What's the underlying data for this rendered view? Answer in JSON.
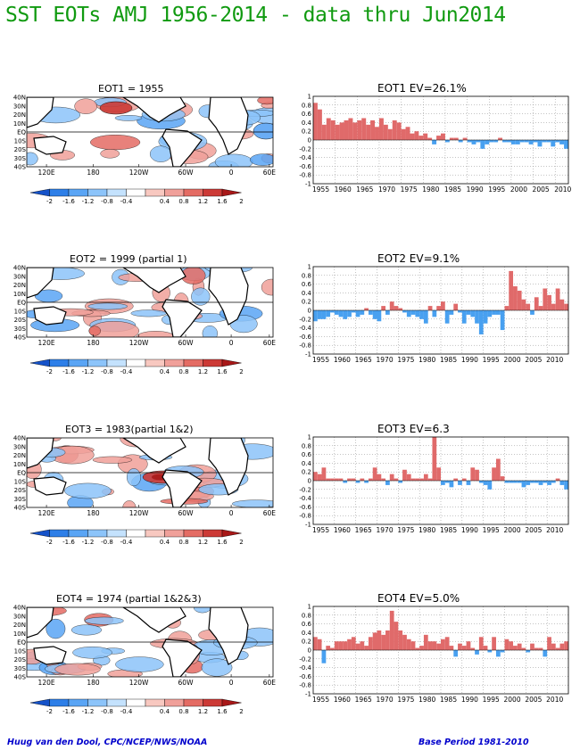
{
  "title": "SST EOTs AMJ 1956-2014 - data thru Jun2014",
  "credit_left": "Huug van den Dool, CPC/NCEP/NWS/NOAA",
  "credit_right": "Base Period 1981-2010",
  "map_lat_labels": [
    "40N",
    "30N",
    "20N",
    "10N",
    "EQ",
    "10S",
    "20S",
    "30S",
    "40S"
  ],
  "map_lon_labels": [
    "120E",
    "180",
    "120W",
    "60W",
    "0",
    "60E"
  ],
  "colorbar_labels": [
    "-2",
    "-1.6",
    "-1.2",
    "-0.8",
    "-0.4",
    "0.4",
    "0.8",
    "1.2",
    "1.6",
    "2"
  ],
  "colors": {
    "title": "#109a10",
    "positive_bar": "#e06a6a",
    "negative_bar": "#48a0f0",
    "credit": "#0000cc",
    "colorbar": [
      "#1552c9",
      "#2e7fe8",
      "#5aa5f5",
      "#8cc4fa",
      "#c4e2fd",
      "#ffffff",
      "#f8c8c0",
      "#f0a09a",
      "#e46c64",
      "#cc3a36",
      "#a81818"
    ]
  },
  "panels": [
    {
      "map_title": "EOT1    = 1955",
      "bar_title": "EOT1  EV=26.1%"
    },
    {
      "map_title": "EOT2    = 1999 (partial 1)",
      "bar_title": "EOT2  EV=9.1%"
    },
    {
      "map_title": "EOT3    = 1983(partial 1&2)",
      "bar_title": "EOT3  EV=6.3"
    },
    {
      "map_title": "EOT4    = 1974 (partial 1&2&3)",
      "bar_title": "EOT4  EV=5.0%"
    }
  ],
  "chart_data": [
    {
      "type": "bar",
      "title": "EOT1  EV=26.1%",
      "x_start": 1955,
      "ylim": [
        -1,
        1
      ],
      "yticks": [
        "1",
        "0.8",
        "0.6",
        "0.4",
        "0.2",
        "0",
        "-0.2",
        "-0.4",
        "-0.6",
        "-0.8",
        "-1"
      ],
      "xticks": [
        "1955",
        "1960",
        "1965",
        "1970",
        "1975",
        "1980",
        "1985",
        "1990",
        "1995",
        "2000",
        "2005",
        "2010"
      ],
      "values": [
        0.85,
        0.7,
        0.35,
        0.5,
        0.45,
        0.35,
        0.4,
        0.45,
        0.5,
        0.4,
        0.45,
        0.5,
        0.35,
        0.45,
        0.3,
        0.5,
        0.35,
        0.25,
        0.45,
        0.4,
        0.25,
        0.3,
        0.15,
        0.2,
        0.1,
        0.15,
        0.05,
        -0.1,
        0.1,
        0.15,
        -0.05,
        0.05,
        0.05,
        -0.05,
        0.05,
        -0.05,
        -0.1,
        -0.05,
        -0.2,
        -0.1,
        -0.05,
        -0.05,
        0.05,
        -0.05,
        -0.05,
        -0.1,
        -0.1,
        -0.05,
        -0.05,
        -0.1,
        -0.05,
        -0.15,
        -0.05,
        -0.05,
        -0.15,
        -0.05,
        -0.1,
        -0.2
      ]
    },
    {
      "type": "bar",
      "title": "EOT2  EV=9.1%",
      "x_start": 1955,
      "ylim": [
        -1,
        1
      ],
      "yticks": [
        "1",
        "0.8",
        "0.6",
        "0.4",
        "0.2",
        "0",
        "-0.2",
        "-0.4",
        "-0.6",
        "-0.8",
        "-1"
      ],
      "xticks": [
        "1955",
        "1960",
        "1965",
        "1970",
        "1975",
        "1980",
        "1985",
        "1990",
        "1995",
        "2000",
        "2005",
        "2010"
      ],
      "values": [
        -0.25,
        -0.2,
        -0.2,
        -0.15,
        -0.05,
        -0.1,
        -0.15,
        -0.2,
        -0.15,
        -0.05,
        -0.15,
        -0.1,
        0.05,
        -0.1,
        -0.2,
        -0.25,
        0.1,
        -0.1,
        0.2,
        0.1,
        0.05,
        -0.05,
        -0.15,
        -0.1,
        -0.15,
        -0.2,
        -0.3,
        0.1,
        -0.15,
        0.1,
        0.2,
        -0.3,
        -0.1,
        0.15,
        -0.05,
        -0.3,
        -0.1,
        -0.15,
        -0.3,
        -0.55,
        -0.3,
        -0.15,
        -0.1,
        -0.1,
        -0.45,
        0.1,
        0.9,
        0.55,
        0.45,
        0.25,
        0.15,
        -0.1,
        0.3,
        0.1,
        0.5,
        0.35,
        0.15,
        0.5,
        0.25,
        0.15
      ]
    },
    {
      "type": "bar",
      "title": "EOT3  EV=6.3",
      "x_start": 1955,
      "ylim": [
        -1,
        1
      ],
      "yticks": [
        "1",
        "0.8",
        "0.6",
        "0.4",
        "0.2",
        "0",
        "-0.2",
        "-0.4",
        "-0.6",
        "-0.8",
        "-1"
      ],
      "xticks": [
        "1955",
        "1960",
        "1965",
        "1970",
        "1975",
        "1980",
        "1985",
        "1990",
        "1995",
        "2000",
        "2005",
        "2010"
      ],
      "values": [
        0.2,
        0.15,
        0.3,
        0.05,
        0.05,
        0.05,
        0.05,
        -0.05,
        0.05,
        0.05,
        -0.05,
        0.05,
        -0.05,
        0.05,
        0.3,
        0.15,
        0.05,
        -0.1,
        0.15,
        0.05,
        -0.05,
        0.25,
        0.15,
        0.05,
        0.05,
        0.05,
        0.15,
        0.05,
        1.0,
        0.3,
        -0.1,
        -0.05,
        -0.15,
        0.05,
        -0.1,
        0.05,
        -0.1,
        0.3,
        0.25,
        -0.05,
        -0.1,
        -0.2,
        0.3,
        0.5,
        0.1,
        -0.05,
        -0.05,
        -0.05,
        -0.05,
        -0.15,
        -0.1,
        -0.05,
        -0.05,
        -0.1,
        -0.05,
        -0.1,
        -0.05,
        0.05,
        -0.1,
        -0.2
      ]
    },
    {
      "type": "bar",
      "title": "EOT4  EV=5.0%",
      "x_start": 1955,
      "ylim": [
        -1,
        1
      ],
      "yticks": [
        "1",
        "0.8",
        "0.6",
        "0.4",
        "0.2",
        "0",
        "-0.2",
        "-0.4",
        "-0.6",
        "-0.8",
        "-1"
      ],
      "xticks": [
        "1955",
        "1960",
        "1965",
        "1970",
        "1975",
        "1980",
        "1985",
        "1990",
        "1995",
        "2000",
        "2005",
        "2010"
      ],
      "values": [
        0.3,
        0.25,
        -0.3,
        0.1,
        0.05,
        0.2,
        0.2,
        0.2,
        0.25,
        0.3,
        0.15,
        0.2,
        0.1,
        0.3,
        0.4,
        0.45,
        0.35,
        0.45,
        0.9,
        0.65,
        0.45,
        0.35,
        0.25,
        0.2,
        0.05,
        0.1,
        0.35,
        0.2,
        0.2,
        0.15,
        0.25,
        0.3,
        0.1,
        -0.15,
        0.15,
        0.1,
        0.2,
        0.05,
        -0.1,
        0.3,
        0.1,
        -0.05,
        0.3,
        -0.15,
        -0.05,
        0.25,
        0.2,
        0.1,
        0.15,
        0.05,
        -0.05,
        0.15,
        0.05,
        0.05,
        -0.15,
        0.3,
        0.15,
        0.05,
        0.15,
        0.2
      ]
    }
  ]
}
